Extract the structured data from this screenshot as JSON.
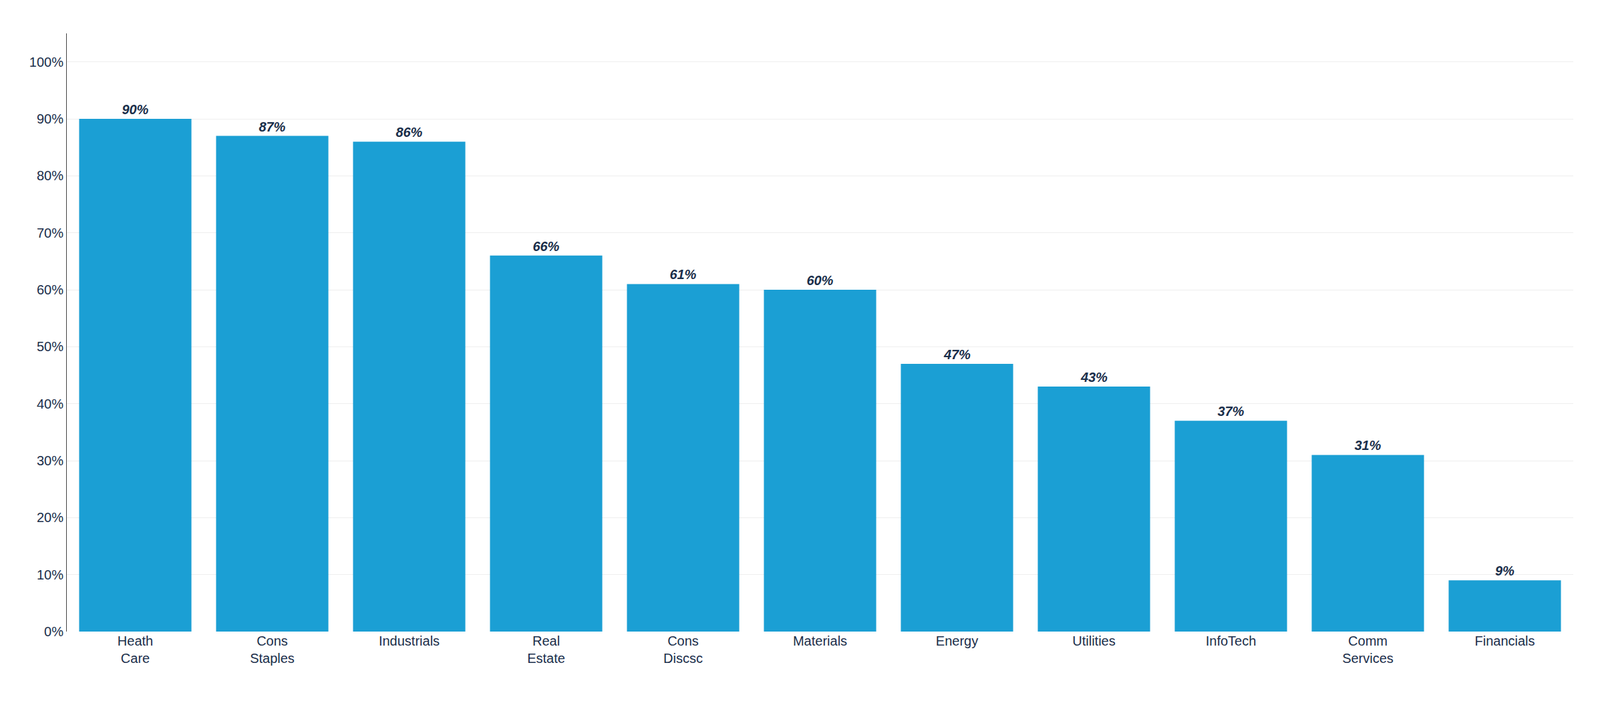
{
  "chart_data": {
    "type": "bar",
    "categories": [
      "Heath\nCare",
      "Cons\nStaples",
      "Industrials",
      "Real\nEstate",
      "Cons\nDiscsc",
      "Materials",
      "Energy",
      "Utilities",
      "InfoTech",
      "Comm\nServices",
      "Financials"
    ],
    "values": [
      90,
      87,
      86,
      66,
      61,
      60,
      47,
      43,
      37,
      31,
      9
    ],
    "value_labels": [
      "90%",
      "87%",
      "86%",
      "66%",
      "61%",
      "60%",
      "47%",
      "43%",
      "37%",
      "31%",
      "9%"
    ],
    "color": "#1B9FD4",
    "ylim": [
      0,
      105
    ],
    "yticks": [
      {
        "value": 0,
        "label": "0%"
      },
      {
        "value": 10,
        "label": "10%"
      },
      {
        "value": 20,
        "label": "20%"
      },
      {
        "value": 30,
        "label": "30%"
      },
      {
        "value": 40,
        "label": "40%"
      },
      {
        "value": 50,
        "label": "50%"
      },
      {
        "value": 60,
        "label": "60%"
      },
      {
        "value": 70,
        "label": "70%"
      },
      {
        "value": 80,
        "label": "80%"
      },
      {
        "value": 90,
        "label": "90%"
      },
      {
        "value": 100,
        "label": "100%"
      }
    ],
    "grid": true
  }
}
